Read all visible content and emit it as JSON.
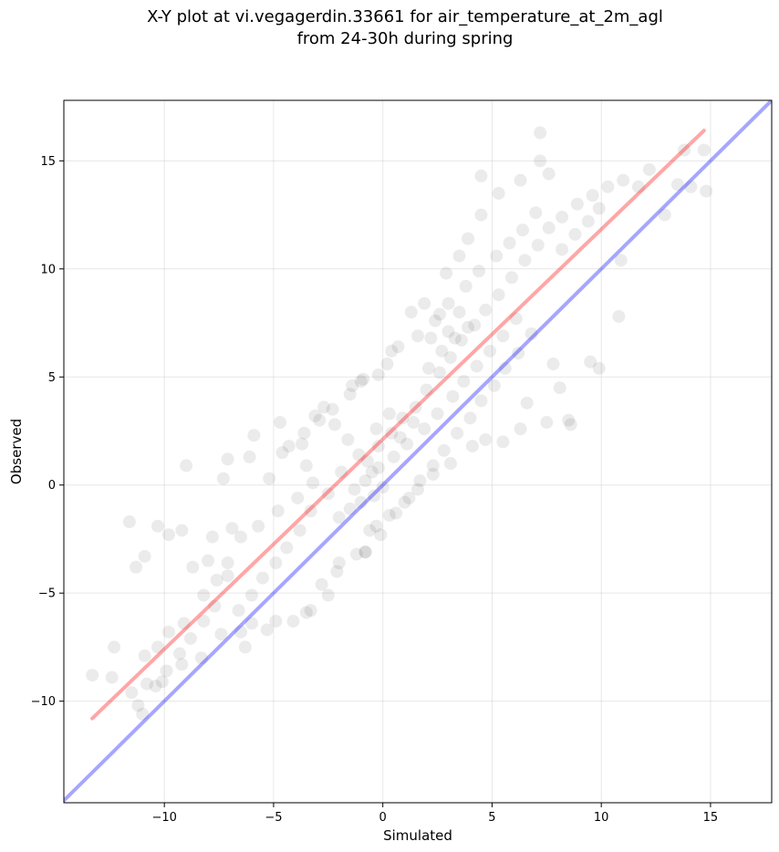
{
  "chart_data": {
    "type": "scatter",
    "title_line1": "X-Y plot at vi.vegagerdin.33661 for air_temperature_at_2m_agl",
    "title_line2": "from 24-30h during spring",
    "xlabel": "Simulated",
    "ylabel": "Observed",
    "xlim": [
      -14.6,
      17.8
    ],
    "ylim": [
      -14.7,
      17.8
    ],
    "xticks": [
      -10,
      -5,
      0,
      5,
      10,
      15
    ],
    "yticks": [
      -10,
      -5,
      0,
      5,
      10,
      15
    ],
    "xtick_labels": [
      "−10",
      "−5",
      "0",
      "5",
      "10",
      "15"
    ],
    "ytick_labels": [
      "−10",
      "−5",
      "0",
      "5",
      "10",
      "15"
    ],
    "grid": true,
    "point_color": "#000000",
    "point_opacity": 0.08,
    "identity_line": {
      "color": "#0000ff",
      "opacity": 0.35,
      "x": [
        -14.6,
        17.8
      ],
      "y": [
        -14.6,
        17.8
      ]
    },
    "fit_line": {
      "color": "#ff0000",
      "opacity": 0.35,
      "x": [
        -13.3,
        14.7
      ],
      "y": [
        -10.8,
        16.4
      ]
    },
    "sample_points": [
      [
        -13.3,
        -8.8
      ],
      [
        -12.3,
        -7.5
      ],
      [
        -12.4,
        -8.9
      ],
      [
        -11.6,
        -1.7
      ],
      [
        -11.3,
        -3.8
      ],
      [
        -10.9,
        -3.3
      ],
      [
        -11.2,
        -10.2
      ],
      [
        -11.0,
        -10.6
      ],
      [
        -10.8,
        -9.2
      ],
      [
        -10.3,
        -1.9
      ],
      [
        -9.8,
        -2.3
      ],
      [
        -9.2,
        -2.1
      ],
      [
        -9.0,
        0.9
      ],
      [
        -7.3,
        0.3
      ],
      [
        -7.1,
        1.2
      ],
      [
        -6.1,
        1.3
      ],
      [
        -5.9,
        2.3
      ],
      [
        -4.7,
        2.9
      ],
      [
        -4.3,
        1.8
      ],
      [
        -3.6,
        2.4
      ],
      [
        -3.5,
        0.9
      ],
      [
        -3.1,
        3.2
      ],
      [
        -4.1,
        -6.3
      ],
      [
        -5.3,
        -6.7
      ],
      [
        -6.3,
        -7.5
      ],
      [
        -6.5,
        -6.8
      ],
      [
        -3.5,
        -5.9
      ],
      [
        -2.5,
        -5.1
      ],
      [
        -2.0,
        -3.6
      ],
      [
        -1.2,
        -3.2
      ],
      [
        -0.8,
        -3.1
      ],
      [
        -0.1,
        -2.3
      ],
      [
        -0.3,
        -1.9
      ],
      [
        -0.8,
        -3.1
      ],
      [
        -1.5,
        4.2
      ],
      [
        -1.0,
        4.8
      ],
      [
        -0.2,
        5.1
      ],
      [
        0.4,
        6.2
      ],
      [
        1.3,
        8.0
      ],
      [
        1.9,
        8.4
      ],
      [
        2.9,
        9.8
      ],
      [
        3.5,
        10.6
      ],
      [
        3.9,
        11.4
      ],
      [
        4.5,
        12.5
      ],
      [
        4.5,
        14.3
      ],
      [
        5.3,
        13.5
      ],
      [
        6.3,
        14.1
      ],
      [
        7.2,
        16.3
      ],
      [
        7.2,
        15.0
      ],
      [
        7.6,
        14.4
      ],
      [
        8.2,
        12.4
      ],
      [
        8.9,
        13.0
      ],
      [
        9.6,
        13.4
      ],
      [
        10.3,
        13.8
      ],
      [
        11.0,
        14.1
      ],
      [
        11.7,
        13.8
      ],
      [
        12.2,
        14.6
      ],
      [
        12.9,
        12.5
      ],
      [
        13.5,
        13.9
      ],
      [
        13.8,
        15.5
      ],
      [
        14.1,
        13.8
      ],
      [
        14.7,
        15.5
      ],
      [
        14.8,
        13.6
      ],
      [
        10.9,
        10.4
      ],
      [
        10.8,
        7.8
      ],
      [
        9.9,
        5.4
      ],
      [
        9.5,
        5.7
      ],
      [
        8.5,
        3.0
      ],
      [
        8.6,
        2.8
      ],
      [
        7.5,
        2.9
      ],
      [
        8.1,
        4.5
      ],
      [
        7.8,
        5.6
      ],
      [
        6.6,
        3.8
      ],
      [
        6.3,
        2.6
      ],
      [
        5.5,
        2.0
      ],
      [
        4.7,
        2.1
      ],
      [
        4.1,
        1.8
      ],
      [
        3.1,
        1.0
      ],
      [
        2.3,
        0.5
      ],
      [
        1.6,
        -0.2
      ],
      [
        1.0,
        -0.8
      ],
      [
        0.3,
        -1.4
      ],
      [
        -0.6,
        -2.1
      ],
      [
        -2.1,
        -4.0
      ],
      [
        -2.8,
        -4.6
      ],
      [
        -3.3,
        -5.8
      ],
      [
        -4.9,
        -6.3
      ],
      [
        -6.0,
        -6.4
      ],
      [
        -7.4,
        -6.9
      ],
      [
        -8.3,
        -8.0
      ],
      [
        -9.2,
        -8.3
      ],
      [
        -10.1,
        -9.1
      ],
      [
        -10.3,
        -7.5
      ],
      [
        -9.8,
        -6.8
      ],
      [
        -9.1,
        -6.4
      ],
      [
        -8.2,
        -5.1
      ],
      [
        -7.6,
        -4.4
      ],
      [
        -7.1,
        -3.6
      ],
      [
        -6.5,
        -2.4
      ],
      [
        -5.7,
        -1.9
      ],
      [
        -4.8,
        -1.2
      ],
      [
        -3.9,
        -0.6
      ],
      [
        -3.2,
        0.1
      ],
      [
        -2.5,
        -0.4
      ],
      [
        -1.9,
        0.6
      ],
      [
        -1.3,
        -0.2
      ],
      [
        -0.7,
        1.1
      ],
      [
        -0.2,
        1.8
      ],
      [
        0.4,
        2.4
      ],
      [
        0.9,
        3.1
      ],
      [
        1.5,
        3.6
      ],
      [
        2.0,
        4.4
      ],
      [
        2.6,
        5.2
      ],
      [
        3.1,
        5.9
      ],
      [
        3.6,
        6.7
      ],
      [
        4.2,
        7.4
      ],
      [
        4.7,
        8.1
      ],
      [
        5.3,
        8.8
      ],
      [
        5.9,
        9.6
      ],
      [
        6.5,
        10.4
      ],
      [
        7.1,
        11.1
      ],
      [
        7.6,
        11.9
      ],
      [
        8.2,
        10.9
      ],
      [
        8.8,
        11.6
      ],
      [
        9.4,
        12.2
      ],
      [
        9.9,
        12.8
      ],
      [
        6.8,
        7.0
      ],
      [
        6.2,
        6.1
      ],
      [
        5.6,
        5.4
      ],
      [
        5.1,
        4.6
      ],
      [
        4.5,
        3.9
      ],
      [
        4.0,
        3.1
      ],
      [
        3.4,
        2.4
      ],
      [
        2.8,
        1.6
      ],
      [
        2.3,
        0.9
      ],
      [
        1.7,
        0.2
      ],
      [
        1.2,
        -0.6
      ],
      [
        0.6,
        -1.3
      ],
      [
        0.0,
        -0.1
      ],
      [
        -0.5,
        0.6
      ],
      [
        -1.1,
        1.4
      ],
      [
        -1.6,
        2.1
      ],
      [
        -2.2,
        2.8
      ],
      [
        -2.7,
        3.6
      ],
      [
        -3.3,
        -1.2
      ],
      [
        -3.8,
        -2.1
      ],
      [
        -4.4,
        -2.9
      ],
      [
        -4.9,
        -3.6
      ],
      [
        -5.5,
        -4.3
      ],
      [
        -6.0,
        -5.1
      ],
      [
        -6.6,
        -5.8
      ],
      [
        -7.1,
        -4.2
      ],
      [
        -7.7,
        -5.6
      ],
      [
        -8.2,
        -6.3
      ],
      [
        -8.8,
        -7.1
      ],
      [
        -9.3,
        -7.8
      ],
      [
        -9.9,
        -8.6
      ],
      [
        -10.4,
        -9.3
      ],
      [
        -10.9,
        -7.9
      ],
      [
        -11.5,
        -9.6
      ],
      [
        -8.7,
        -3.8
      ],
      [
        -8.0,
        -3.5
      ],
      [
        -7.8,
        -2.4
      ],
      [
        -6.9,
        -2.0
      ],
      [
        -5.2,
        0.3
      ],
      [
        -4.6,
        1.5
      ],
      [
        -3.7,
        1.9
      ],
      [
        -2.9,
        3.0
      ],
      [
        -2.3,
        3.5
      ],
      [
        -1.4,
        4.6
      ],
      [
        -0.9,
        4.9
      ],
      [
        0.2,
        5.6
      ],
      [
        0.7,
        6.4
      ],
      [
        1.6,
        6.9
      ],
      [
        2.4,
        7.6
      ],
      [
        3.0,
        8.4
      ],
      [
        3.8,
        9.2
      ],
      [
        4.4,
        9.9
      ],
      [
        5.2,
        10.6
      ],
      [
        5.8,
        11.2
      ],
      [
        6.4,
        11.8
      ],
      [
        7.0,
        12.6
      ],
      [
        1.9,
        2.6
      ],
      [
        2.5,
        3.3
      ],
      [
        3.2,
        4.1
      ],
      [
        3.7,
        4.8
      ],
      [
        4.3,
        5.5
      ],
      [
        4.9,
        6.2
      ],
      [
        5.5,
        6.9
      ],
      [
        6.1,
        7.7
      ],
      [
        2.1,
        5.4
      ],
      [
        2.7,
        6.2
      ],
      [
        3.3,
        6.8
      ],
      [
        3.9,
        7.3
      ],
      [
        2.2,
        6.8
      ],
      [
        3.0,
        7.1
      ],
      [
        3.5,
        8.0
      ],
      [
        2.6,
        7.9
      ],
      [
        -0.4,
        -0.5
      ],
      [
        -1.0,
        -0.8
      ],
      [
        -1.5,
        -1.1
      ],
      [
        -2.0,
        -1.5
      ],
      [
        -0.8,
        0.2
      ],
      [
        -0.2,
        0.8
      ],
      [
        0.5,
        1.3
      ],
      [
        1.1,
        1.9
      ],
      [
        1.4,
        2.9
      ],
      [
        0.8,
        2.2
      ],
      [
        0.3,
        3.3
      ],
      [
        -0.3,
        2.6
      ]
    ]
  }
}
